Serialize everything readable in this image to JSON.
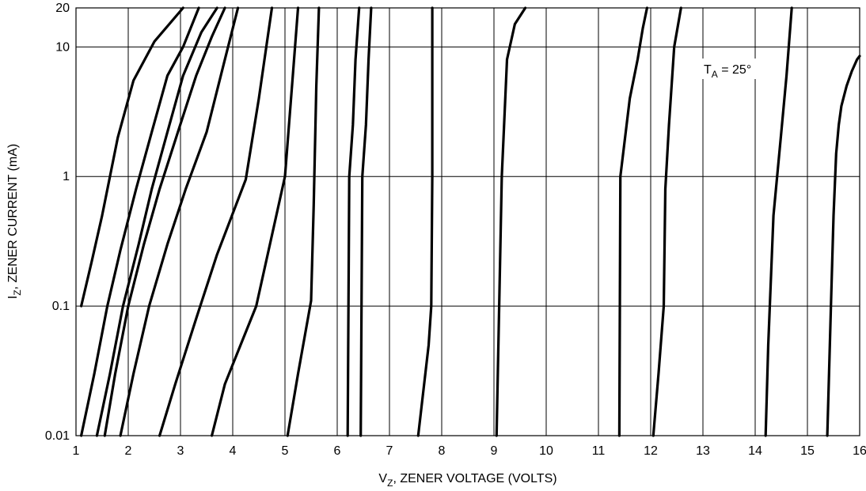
{
  "chart_data": {
    "type": "line",
    "title": "",
    "xlabel": {
      "base": "V",
      "sub": "Z",
      "rest": ", ZENER VOLTAGE (VOLTS)"
    },
    "ylabel": {
      "base": "I",
      "sub": "Z",
      "rest": ", ZENER CURRENT (mA)"
    },
    "xscale": "linear",
    "yscale": "log",
    "xlim": [
      1,
      16
    ],
    "ylim": [
      0.01,
      20
    ],
    "xticks": [
      1,
      2,
      3,
      4,
      5,
      6,
      7,
      8,
      9,
      10,
      11,
      12,
      13,
      14,
      15,
      16
    ],
    "xtick_labels": [
      "1",
      "2",
      "3",
      "4",
      "5",
      "6",
      "7",
      "8",
      "9",
      "10",
      "11",
      "12",
      "13",
      "14",
      "15",
      "16"
    ],
    "yticks": [
      0.01,
      0.1,
      1,
      10,
      20
    ],
    "ytick_labels": [
      "0.01",
      "0.1",
      "1",
      "10",
      "20"
    ],
    "grid": true,
    "annotation": {
      "base": "T",
      "sub": "A",
      "rest": " = 25°",
      "x": 13.05,
      "y": 6.5
    },
    "series": [
      {
        "x": [
          1.1,
          1.3,
          1.5,
          1.8,
          2.1,
          2.5,
          3.05
        ],
        "y": [
          0.1,
          0.22,
          0.5,
          2.0,
          5.5,
          11,
          20
        ]
      },
      {
        "x": [
          1.1,
          1.35,
          1.6,
          1.85,
          2.15,
          2.45,
          2.75,
          3.05,
          3.35
        ],
        "y": [
          0.01,
          0.03,
          0.1,
          0.27,
          0.8,
          2.2,
          6,
          10,
          20
        ]
      },
      {
        "x": [
          1.4,
          1.65,
          1.9,
          2.2,
          2.45,
          2.75,
          3.05,
          3.4,
          3.7
        ],
        "y": [
          0.01,
          0.03,
          0.1,
          0.3,
          0.8,
          2.2,
          6,
          13,
          20
        ]
      },
      {
        "x": [
          1.55,
          1.75,
          2.0,
          2.3,
          2.6,
          2.95,
          3.3,
          3.6,
          3.85
        ],
        "y": [
          0.01,
          0.03,
          0.1,
          0.3,
          0.8,
          2.2,
          6,
          12,
          20
        ]
      },
      {
        "x": [
          1.85,
          2.1,
          2.4,
          2.75,
          3.1,
          3.5,
          3.85,
          4.1
        ],
        "y": [
          0.01,
          0.03,
          0.1,
          0.3,
          0.8,
          2.2,
          8,
          20
        ]
      },
      {
        "x": [
          2.6,
          2.9,
          3.3,
          3.7,
          4.25,
          4.5,
          4.75
        ],
        "y": [
          0.01,
          0.025,
          0.08,
          0.25,
          0.95,
          4,
          20
        ]
      },
      {
        "x": [
          3.6,
          3.85,
          4.15,
          4.45,
          5.0,
          5.15,
          5.25
        ],
        "y": [
          0.01,
          0.025,
          0.05,
          0.1,
          1.0,
          6,
          20
        ]
      },
      {
        "x": [
          5.05,
          5.25,
          5.5,
          5.55,
          5.6,
          5.65
        ],
        "y": [
          0.01,
          0.03,
          0.11,
          0.6,
          5,
          20
        ]
      },
      {
        "x": [
          6.2,
          6.23,
          6.3,
          6.35,
          6.42
        ],
        "y": [
          0.01,
          1.0,
          2.5,
          8,
          20
        ]
      },
      {
        "x": [
          6.45,
          6.48,
          6.55,
          6.6,
          6.65
        ],
        "y": [
          0.01,
          1.0,
          2.5,
          8,
          20
        ]
      },
      {
        "x": [
          7.55,
          7.75,
          7.8,
          7.82,
          7.82
        ],
        "y": [
          0.01,
          0.05,
          0.1,
          1.0,
          20
        ]
      },
      {
        "x": [
          9.05,
          9.1,
          9.15,
          9.25,
          9.4,
          9.6
        ],
        "y": [
          0.01,
          0.1,
          1.0,
          8,
          15,
          20
        ]
      },
      {
        "x": [
          11.4,
          11.42,
          11.6,
          11.75,
          11.85,
          11.93
        ],
        "y": [
          0.01,
          1.0,
          4,
          8,
          14,
          20
        ]
      },
      {
        "x": [
          12.05,
          12.15,
          12.25,
          12.28,
          12.35,
          12.45,
          12.58
        ],
        "y": [
          0.01,
          0.03,
          0.1,
          0.8,
          2.5,
          10,
          20
        ]
      },
      {
        "x": [
          14.2,
          14.25,
          14.35,
          14.5,
          14.6,
          14.7
        ],
        "y": [
          0.01,
          0.05,
          0.5,
          2.2,
          6,
          20
        ]
      },
      {
        "x": [
          15.38,
          15.45,
          15.5,
          15.55,
          15.6,
          15.65,
          15.75,
          15.85,
          15.95,
          16.0
        ],
        "y": [
          0.01,
          0.1,
          0.5,
          1.5,
          2.5,
          3.5,
          5,
          6.5,
          8,
          8.5
        ]
      }
    ]
  }
}
